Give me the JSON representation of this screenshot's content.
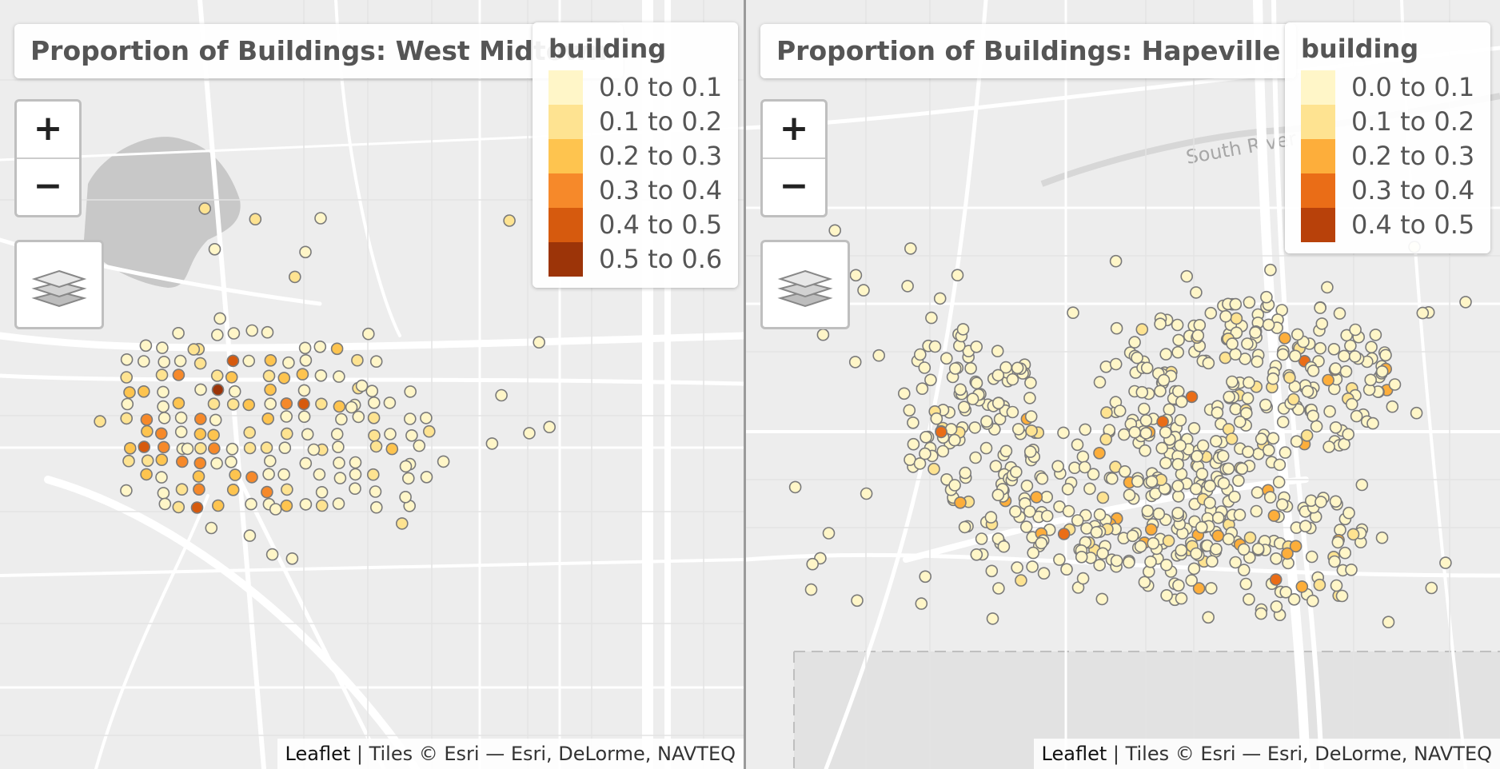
{
  "palette": {
    "bins": [
      "#fff7cc",
      "#fee391",
      "#fec44f",
      "#fe9929",
      "#ec7014",
      "#cc4c02",
      "#993404"
    ],
    "marker_stroke": "#7a7a7a",
    "basemap_bg": "#ededed",
    "road": "#ffffff",
    "water": "#c6c6c6"
  },
  "maps": [
    {
      "title": "Proportion of Buildings: West Midtown",
      "legend": {
        "title": "building",
        "items": [
          {
            "label": "0.0 to 0.1",
            "color": "#fff6c8"
          },
          {
            "label": "0.1 to 0.2",
            "color": "#fee391"
          },
          {
            "label": "0.2 to 0.3",
            "color": "#fec44f"
          },
          {
            "label": "0.3 to 0.4",
            "color": "#f6892a"
          },
          {
            "label": "0.4 to 0.5",
            "color": "#d65a0e"
          },
          {
            "label": "0.5 to 0.6",
            "color": "#9c3408"
          }
        ]
      },
      "controls": {
        "zoom_in": "+",
        "zoom_out": "−",
        "layers_icon": "layers-icon"
      },
      "attribution": {
        "leaflet": "Leaflet",
        "text": " | Tiles © Esri — Esri, DeLorme, NAVTEQ"
      }
    },
    {
      "title": "Proportion of Buildings: Hapeville",
      "legend": {
        "title": "building",
        "items": [
          {
            "label": "0.0 to 0.1",
            "color": "#fff6c8"
          },
          {
            "label": "0.1 to 0.2",
            "color": "#fee391"
          },
          {
            "label": "0.2 to 0.3",
            "color": "#fdae3b"
          },
          {
            "label": "0.3 to 0.4",
            "color": "#ea6d17"
          },
          {
            "label": "0.4 to 0.5",
            "color": "#b8410a"
          }
        ]
      },
      "controls": {
        "zoom_in": "+",
        "zoom_out": "−",
        "layers_icon": "layers-icon"
      },
      "attribution": {
        "leaflet": "Leaflet",
        "text": " | Tiles © Esri — Esri, DeLorme, NAVTEQ"
      },
      "basemap_labels": {
        "river": "South River"
      }
    }
  ]
}
